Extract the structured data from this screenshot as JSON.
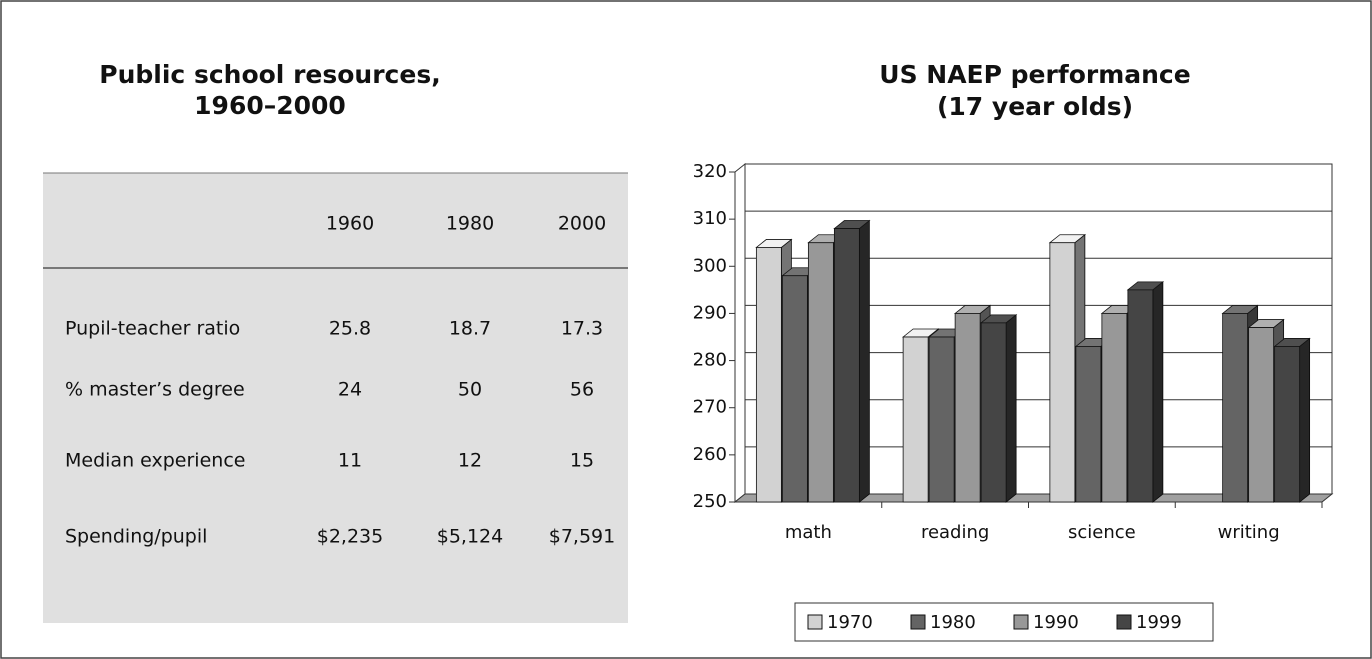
{
  "table": {
    "title": [
      "Public school resources,",
      "1960–2000"
    ],
    "header": [
      "1960",
      "1980",
      "2000"
    ],
    "rows": [
      [
        "Pupil-teacher ratio",
        "25.8",
        "18.7",
        "17.3"
      ],
      [
        "% master’s degree",
        "24",
        "50",
        "56"
      ],
      [
        "Median experience",
        "11",
        "12",
        "15"
      ],
      [
        "Spending/pupil",
        "$2,235",
        "$5,124",
        "$7,591"
      ]
    ]
  },
  "chart_data": {
    "type": "bar3d",
    "title": [
      "US NAEP performance",
      "(17 year olds)"
    ],
    "categories": [
      "math",
      "reading",
      "science",
      "writing"
    ],
    "series": [
      {
        "name": "1970",
        "color": "#d2d2d2",
        "values": [
          304,
          285,
          305,
          null
        ]
      },
      {
        "name": "1980",
        "color": "#646464",
        "values": [
          298,
          285,
          283,
          290
        ]
      },
      {
        "name": "1990",
        "color": "#989898",
        "values": [
          305,
          290,
          290,
          287
        ]
      },
      {
        "name": "1999",
        "color": "#454545",
        "values": [
          308,
          288,
          295,
          283
        ]
      }
    ],
    "ylim": [
      250,
      320
    ],
    "yticks": [
      250,
      260,
      270,
      280,
      290,
      300,
      310,
      320
    ],
    "grid": true,
    "legend": "bottom"
  }
}
